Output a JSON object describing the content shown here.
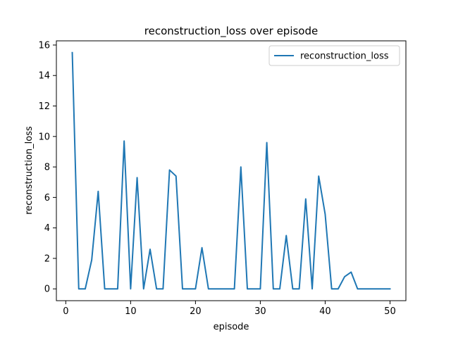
{
  "chart_data": {
    "type": "line",
    "title": "reconstruction_loss over episode",
    "xlabel": "episode",
    "ylabel": "reconstruction_loss",
    "xlim": [
      -1.45,
      52.45
    ],
    "ylim": [
      -0.775,
      16.275
    ],
    "x_ticks": [
      0,
      10,
      20,
      30,
      40,
      50
    ],
    "y_ticks": [
      0,
      2,
      4,
      6,
      8,
      10,
      12,
      14,
      16
    ],
    "grid": false,
    "legend_position": "top-right",
    "series": [
      {
        "name": "reconstruction_loss",
        "color": "#1f77b4",
        "x": [
          1,
          2,
          3,
          4,
          5,
          6,
          7,
          8,
          9,
          10,
          11,
          12,
          13,
          14,
          15,
          16,
          17,
          18,
          19,
          20,
          21,
          22,
          23,
          24,
          25,
          26,
          27,
          28,
          29,
          30,
          31,
          32,
          33,
          34,
          35,
          36,
          37,
          38,
          39,
          40,
          41,
          42,
          43,
          44,
          45,
          46,
          47,
          48,
          49,
          50
        ],
        "y": [
          15.5,
          0,
          0,
          1.9,
          6.4,
          0,
          0,
          0,
          9.7,
          0,
          7.3,
          0,
          2.6,
          0,
          0,
          7.8,
          7.4,
          0,
          0,
          0,
          2.7,
          0,
          0,
          0,
          0,
          0,
          8.0,
          0,
          0,
          0,
          9.6,
          0,
          0,
          3.5,
          0,
          0,
          5.9,
          0,
          7.4,
          4.9,
          0,
          0,
          0.8,
          1.1,
          0,
          0,
          0,
          0,
          0,
          0
        ]
      }
    ]
  }
}
